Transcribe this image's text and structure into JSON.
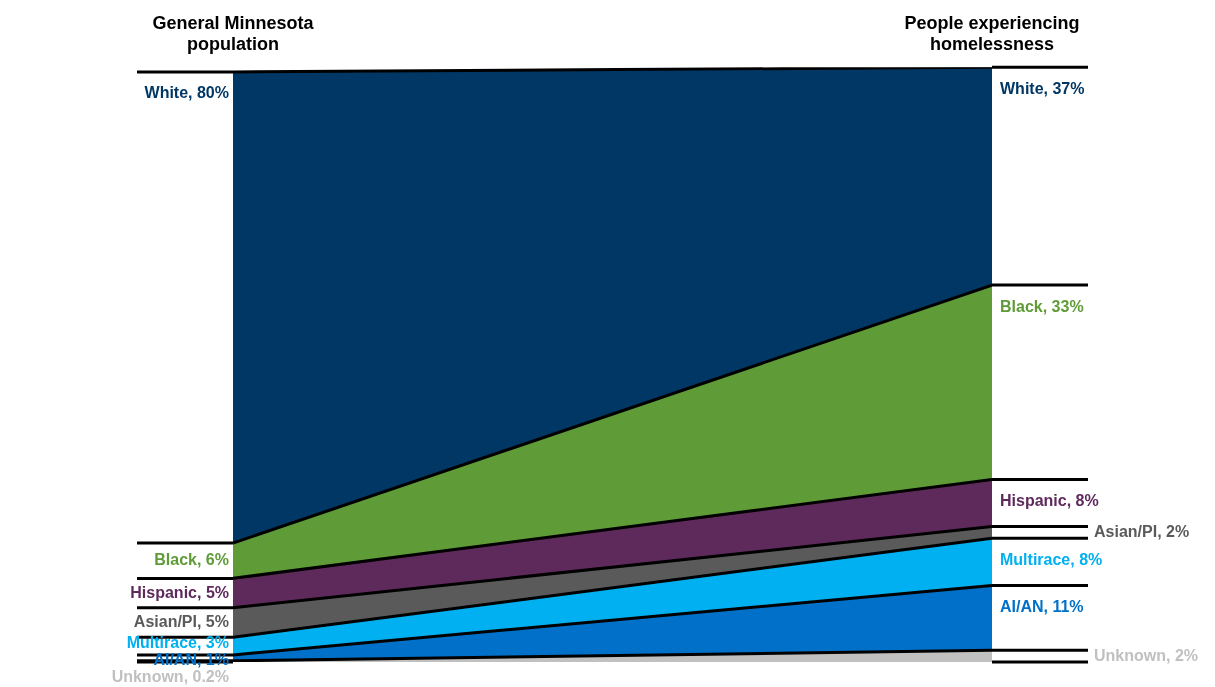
{
  "chart_data": {
    "type": "area",
    "stacked": true,
    "data_labels": true,
    "categories": [
      "General Minnesota population",
      "People experiencing homelessness"
    ],
    "series": [
      {
        "color": "#c0c0c0",
        "values": [
          0.2,
          2
        ],
        "value_labels": [
          "Unknown, 0.2%",
          "Unknown, 2%"
        ]
      },
      {
        "color": "#0070c8",
        "values": [
          1,
          11
        ],
        "value_labels": [
          "AI/AN, 1%",
          "AI/AN, 11%"
        ]
      },
      {
        "color": "#00b0f0",
        "values": [
          3,
          8
        ],
        "value_labels": [
          "Multirace, 3%",
          "Multirace, 8%"
        ]
      },
      {
        "color": "#5a5a5a",
        "values": [
          5,
          2
        ],
        "value_labels": [
          "Asian/PI, 5%",
          "Asian/PI, 2%"
        ]
      },
      {
        "color": "#5e2a5c",
        "values": [
          5,
          8
        ],
        "value_labels": [
          "Hispanic, 5%",
          "Hispanic, 8%"
        ]
      },
      {
        "color": "#5f9b37",
        "values": [
          6,
          33
        ],
        "value_labels": [
          "Black, 6%",
          "Black, 33%"
        ]
      },
      {
        "color": "#003764",
        "values": [
          80,
          37
        ],
        "value_labels": [
          "White, 80%",
          "White, 37%"
        ]
      }
    ]
  }
}
